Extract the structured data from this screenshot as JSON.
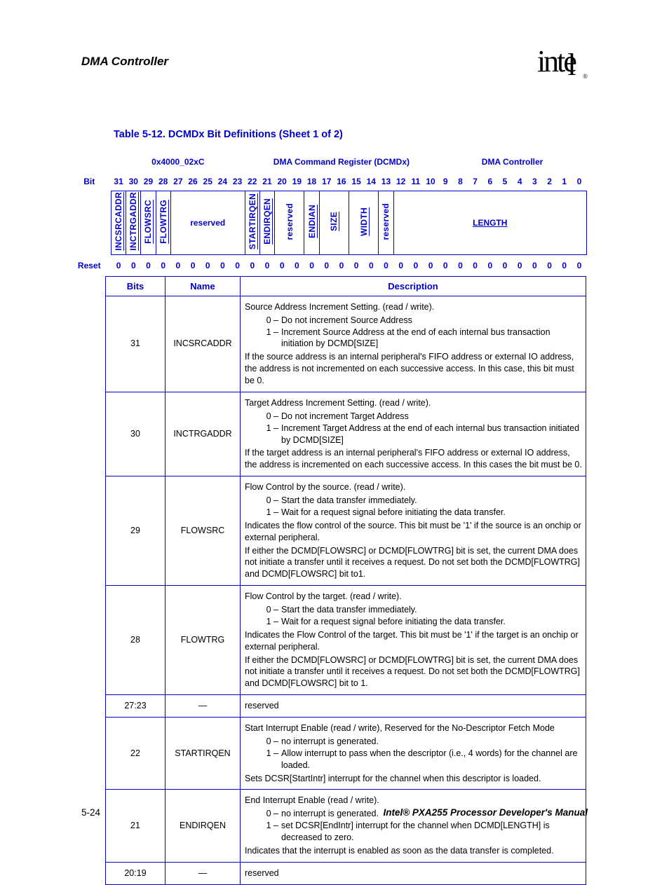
{
  "header": {
    "title": "DMA Controller"
  },
  "caption": "Table 5-12. DCMDx Bit Definitions (Sheet 1 of 2)",
  "reg": {
    "address": "0x4000_02xC",
    "name": "DMA Command Register (DCMDx)",
    "module": "DMA Controller",
    "bit_label": "Bit",
    "reset_label": "Reset",
    "bits": [
      "31",
      "30",
      "29",
      "28",
      "27",
      "26",
      "25",
      "24",
      "23",
      "22",
      "21",
      "20",
      "19",
      "18",
      "17",
      "16",
      "15",
      "14",
      "13",
      "12",
      "11",
      "10",
      "9",
      "8",
      "7",
      "6",
      "5",
      "4",
      "3",
      "2",
      "1",
      "0"
    ],
    "reset": [
      "0",
      "0",
      "0",
      "0",
      "0",
      "0",
      "0",
      "0",
      "0",
      "0",
      "0",
      "0",
      "0",
      "0",
      "0",
      "0",
      "0",
      "0",
      "0",
      "0",
      "0",
      "0",
      "0",
      "0",
      "0",
      "0",
      "0",
      "0",
      "0",
      "0",
      "0",
      "0"
    ],
    "fields": [
      {
        "label": "INCSRCADDR",
        "span": 1,
        "vert": true,
        "underline": true
      },
      {
        "label": "INCTRGADDR",
        "span": 1,
        "vert": true,
        "underline": true
      },
      {
        "label": "FLOWSRC",
        "span": 1,
        "vert": true,
        "underline": true
      },
      {
        "label": "FLOWTRG",
        "span": 1,
        "vert": true,
        "underline": true
      },
      {
        "label": "reserved",
        "span": 5,
        "vert": false,
        "underline": false
      },
      {
        "label": "STARTIRQEN",
        "span": 1,
        "vert": true,
        "underline": true
      },
      {
        "label": "ENDIRQEN",
        "span": 1,
        "vert": true,
        "underline": true
      },
      {
        "label": "reserved",
        "span": 2,
        "vert": true,
        "underline": false
      },
      {
        "label": "ENDIAN",
        "span": 1,
        "vert": true,
        "underline": true
      },
      {
        "label": "SIZE",
        "span": 2,
        "vert": true,
        "underline": true
      },
      {
        "label": "WIDTH",
        "span": 2,
        "vert": true,
        "underline": true
      },
      {
        "label": "reserved",
        "span": 1,
        "vert": true,
        "underline": false
      },
      {
        "label": "LENGTH",
        "span": 13,
        "vert": false,
        "underline": true
      }
    ]
  },
  "desc": {
    "headers": {
      "bits": "Bits",
      "name": "Name",
      "desc": "Description"
    },
    "rows": [
      {
        "bits": "31",
        "name": "INCSRCADDR",
        "desc": {
          "lead": "Source Address Increment Setting. (read / write).",
          "opts": [
            {
              "k": "0 –",
              "v": "Do not increment Source Address"
            },
            {
              "k": "1 –",
              "v": "Increment Source Address at the end of each internal bus transaction initiation by DCMD[SIZE]"
            }
          ],
          "trail": [
            "If the source address is an internal peripheral's FIFO address or external IO address, the address is not incremented on each successive access. In this case, this bit must be 0."
          ]
        }
      },
      {
        "bits": "30",
        "name": "INCTRGADDR",
        "desc": {
          "lead": "Target Address Increment Setting. (read / write).",
          "opts": [
            {
              "k": "0 –",
              "v": "Do not increment Target Address"
            },
            {
              "k": "1 –",
              "v": "Increment Target Address at the end of each internal bus transaction initiated by DCMD[SIZE]"
            }
          ],
          "trail": [
            "If the target address is an internal peripheral's FIFO address or external IO address, the address is incremented on each successive access. In this cases the bit must be 0."
          ]
        }
      },
      {
        "bits": "29",
        "name": "FLOWSRC",
        "desc": {
          "lead": "Flow Control by the source. (read / write).",
          "opts": [
            {
              "k": "0 –",
              "v": "Start the data transfer immediately."
            },
            {
              "k": "1 –",
              "v": "Wait for a request signal before initiating the data transfer."
            }
          ],
          "trail": [
            "Indicates the flow control of the source. This bit must be '1' if the source is an onchip or external peripheral.",
            "If either the DCMD[FLOWSRC] or DCMD[FLOWTRG] bit is set, the current DMA does not initiate a transfer until it receives a request. Do not set both the DCMD[FLOWTRG] and DCMD[FLOWSRC] bit to1."
          ]
        }
      },
      {
        "bits": "28",
        "name": "FLOWTRG",
        "desc": {
          "lead": "Flow Control by the target. (read / write).",
          "opts": [
            {
              "k": "0 –",
              "v": "Start the data transfer immediately."
            },
            {
              "k": "1 –",
              "v": "Wait for a request signal before initiating the data transfer."
            }
          ],
          "trail": [
            "Indicates the Flow Control of the target. This bit must be '1' if the target is an onchip or external peripheral.",
            "If either the DCMD[FLOWSRC] or DCMD[FLOWTRG] bit is set, the current DMA does not initiate a transfer until it receives a request. Do not set both the DCMD[FLOWTRG] and DCMD[FLOWSRC] bit to 1."
          ]
        }
      },
      {
        "bits": "27:23",
        "name": "—",
        "desc": {
          "lead": "reserved",
          "opts": [],
          "trail": []
        }
      },
      {
        "bits": "22",
        "name": "STARTIRQEN",
        "desc": {
          "lead": "Start Interrupt Enable (read / write), Reserved for the No-Descriptor Fetch Mode",
          "opts": [
            {
              "k": "0 –",
              "v": "no interrupt is generated."
            },
            {
              "k": "1 –",
              "v": "Allow interrupt to pass when the descriptor (i.e., 4 words) for the channel are loaded."
            }
          ],
          "trail": [
            "Sets DCSR[StartIntr] interrupt for the channel when this descriptor is loaded."
          ]
        }
      },
      {
        "bits": "21",
        "name": "ENDIRQEN",
        "desc": {
          "lead": "End Interrupt Enable (read / write).",
          "opts": [
            {
              "k": "0 –",
              "v": "no interrupt is generated."
            },
            {
              "k": "1 –",
              "v": "set DCSR[EndIntr] interrupt for the channel when DCMD[LENGTH] is decreased to zero."
            }
          ],
          "trail": [
            "Indicates that the interrupt is enabled as soon as the data transfer is completed."
          ]
        }
      },
      {
        "bits": "20:19",
        "name": "—",
        "desc": {
          "lead": "reserved",
          "opts": [],
          "trail": []
        }
      }
    ]
  },
  "footer": {
    "left": "5-24",
    "right": "Intel® PXA255 Processor Developer's Manual"
  }
}
